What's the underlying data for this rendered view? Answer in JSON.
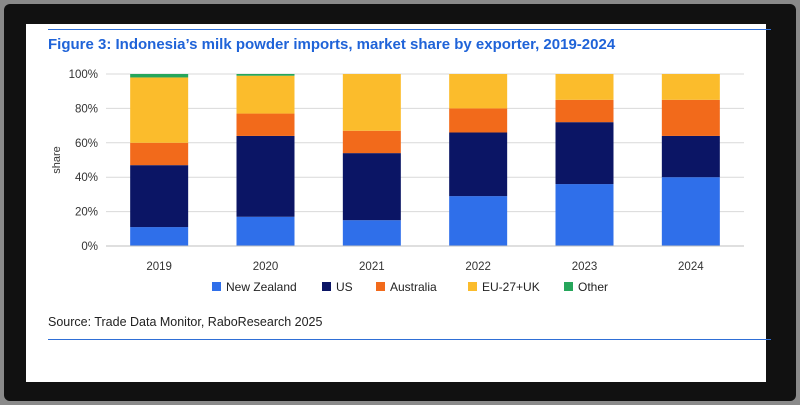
{
  "title": "Figure 3: Indonesia’s milk powder imports, market share by exporter, 2019-2024",
  "source": "Source: Trade Data Monitor, RaboResearch 2025",
  "chart_data": {
    "type": "bar",
    "stacked": true,
    "title": "Figure 3: Indonesia’s milk powder imports, market share by exporter, 2019-2024",
    "xlabel": "",
    "ylabel": "share",
    "ylim": [
      0,
      100
    ],
    "yticks": [
      "0%",
      "20%",
      "40%",
      "60%",
      "80%",
      "100%"
    ],
    "grid": true,
    "legend_position": "bottom",
    "categories": [
      "2019",
      "2020",
      "2021",
      "2022",
      "2023",
      "2024"
    ],
    "series": [
      {
        "name": "New Zealand",
        "color": "#2f6fea",
        "values": [
          11,
          17,
          15,
          29,
          36,
          40
        ]
      },
      {
        "name": "US",
        "color": "#0b1565",
        "values": [
          36,
          47,
          39,
          37,
          36,
          24
        ]
      },
      {
        "name": "Australia",
        "color": "#f26a1b",
        "values": [
          13,
          13,
          13,
          14,
          13,
          21
        ]
      },
      {
        "name": "EU-27+UK",
        "color": "#fbbc2c",
        "values": [
          38,
          22,
          33,
          20,
          15,
          15
        ]
      },
      {
        "name": "Other",
        "color": "#26a65b",
        "values": [
          2,
          1,
          0,
          0,
          0,
          0
        ]
      }
    ]
  }
}
